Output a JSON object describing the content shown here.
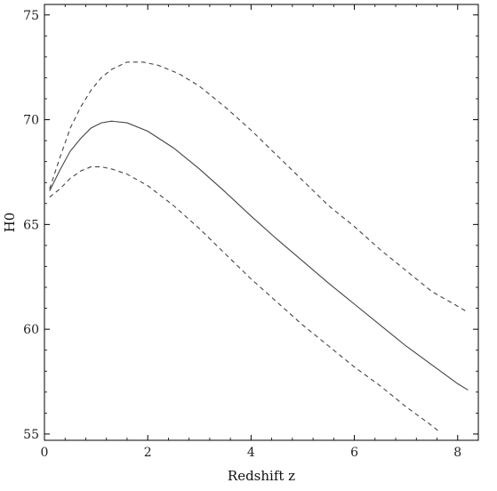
{
  "chart_data": {
    "type": "line",
    "title": "",
    "xlabel": "Redshift z",
    "ylabel": "H0",
    "xlim": [
      0,
      8.4
    ],
    "ylim": [
      54.7,
      75.5
    ],
    "x_ticks": [
      "0",
      "2",
      "4",
      "6",
      "8"
    ],
    "y_ticks": [
      "55",
      "60",
      "65",
      "70",
      "75"
    ],
    "grid": false,
    "legend": "none",
    "series": [
      {
        "style": "solid",
        "color": "#444444",
        "points": [
          [
            0.1,
            66.6
          ],
          [
            0.3,
            67.6
          ],
          [
            0.5,
            68.5
          ],
          [
            0.7,
            69.1
          ],
          [
            0.9,
            69.6
          ],
          [
            1.1,
            69.85
          ],
          [
            1.3,
            69.93
          ],
          [
            1.6,
            69.85
          ],
          [
            2.0,
            69.45
          ],
          [
            2.5,
            68.65
          ],
          [
            3.0,
            67.65
          ],
          [
            3.5,
            66.55
          ],
          [
            4.0,
            65.4
          ],
          [
            4.5,
            64.3
          ],
          [
            5.0,
            63.25
          ],
          [
            5.5,
            62.2
          ],
          [
            6.0,
            61.2
          ],
          [
            6.5,
            60.2
          ],
          [
            7.0,
            59.2
          ],
          [
            7.5,
            58.3
          ],
          [
            8.0,
            57.4
          ],
          [
            8.2,
            57.1
          ]
        ]
      },
      {
        "style": "dashed",
        "color": "#444444",
        "points": [
          [
            0.1,
            66.7
          ],
          [
            0.3,
            68.2
          ],
          [
            0.5,
            69.6
          ],
          [
            0.7,
            70.6
          ],
          [
            0.9,
            71.4
          ],
          [
            1.1,
            72.0
          ],
          [
            1.3,
            72.4
          ],
          [
            1.6,
            72.75
          ],
          [
            1.9,
            72.75
          ],
          [
            2.2,
            72.6
          ],
          [
            2.6,
            72.2
          ],
          [
            3.0,
            71.6
          ],
          [
            3.5,
            70.6
          ],
          [
            4.0,
            69.5
          ],
          [
            4.5,
            68.3
          ],
          [
            5.0,
            67.1
          ],
          [
            5.5,
            65.9
          ],
          [
            6.0,
            64.9
          ],
          [
            6.5,
            63.8
          ],
          [
            7.0,
            62.8
          ],
          [
            7.5,
            61.8
          ],
          [
            8.0,
            61.1
          ],
          [
            8.2,
            60.8
          ]
        ]
      },
      {
        "style": "dashed",
        "color": "#444444",
        "points": [
          [
            0.1,
            66.3
          ],
          [
            0.3,
            66.7
          ],
          [
            0.5,
            67.2
          ],
          [
            0.7,
            67.55
          ],
          [
            0.9,
            67.75
          ],
          [
            1.1,
            67.75
          ],
          [
            1.3,
            67.65
          ],
          [
            1.6,
            67.4
          ],
          [
            2.0,
            66.85
          ],
          [
            2.5,
            65.9
          ],
          [
            3.0,
            64.8
          ],
          [
            3.5,
            63.6
          ],
          [
            4.0,
            62.4
          ],
          [
            4.5,
            61.3
          ],
          [
            5.0,
            60.2
          ],
          [
            5.5,
            59.2
          ],
          [
            6.0,
            58.2
          ],
          [
            6.5,
            57.3
          ],
          [
            7.0,
            56.3
          ],
          [
            7.5,
            55.4
          ],
          [
            7.65,
            55.1
          ]
        ]
      }
    ]
  }
}
